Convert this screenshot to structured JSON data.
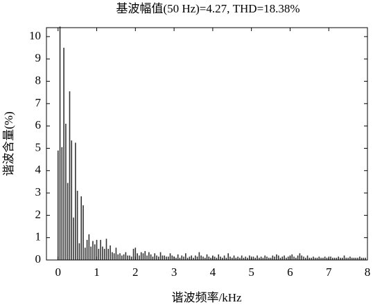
{
  "chart_data": {
    "type": "bar",
    "title": "基波幅值(50 Hz)=4.27, THD=18.38%",
    "x_label": "谐波频率/kHz",
    "y_label": "谐波含量(%)",
    "color": "#333333",
    "xlim": [
      -0.3,
      8
    ],
    "ylim": [
      0,
      10.4
    ],
    "xticks": [
      0,
      1,
      2,
      3,
      4,
      5,
      6,
      7,
      8
    ],
    "yticks": [
      0,
      1,
      2,
      3,
      4,
      5,
      6,
      7,
      8,
      9,
      10
    ],
    "x": [
      0,
      0.05,
      0.1,
      0.15,
      0.2,
      0.25,
      0.3,
      0.35,
      0.4,
      0.45,
      0.5,
      0.55,
      0.6,
      0.65,
      0.7,
      0.75,
      0.8,
      0.85,
      0.9,
      0.95,
      1,
      1.05,
      1.1,
      1.15,
      1.2,
      1.25,
      1.3,
      1.35,
      1.4,
      1.45,
      1.5,
      1.55,
      1.6,
      1.65,
      1.7,
      1.75,
      1.8,
      1.85,
      1.9,
      1.95,
      2,
      2.05,
      2.1,
      2.15,
      2.2,
      2.25,
      2.3,
      2.35,
      2.4,
      2.45,
      2.5,
      2.55,
      2.6,
      2.65,
      2.7,
      2.75,
      2.8,
      2.85,
      2.9,
      2.95,
      3,
      3.05,
      3.1,
      3.15,
      3.2,
      3.25,
      3.3,
      3.35,
      3.4,
      3.45,
      3.5,
      3.55,
      3.6,
      3.65,
      3.7,
      3.75,
      3.8,
      3.85,
      3.9,
      3.95,
      4,
      4.05,
      4.1,
      4.15,
      4.2,
      4.25,
      4.3,
      4.35,
      4.4,
      4.45,
      4.5,
      4.55,
      4.6,
      4.65,
      4.7,
      4.75,
      4.8,
      4.85,
      4.9,
      4.95,
      5,
      5.05,
      5.1,
      5.15,
      5.2,
      5.25,
      5.3,
      5.35,
      5.4,
      5.45,
      5.5,
      5.55,
      5.6,
      5.65,
      5.7,
      5.75,
      5.8,
      5.85,
      5.9,
      5.95,
      6,
      6.05,
      6.1,
      6.15,
      6.2,
      6.25,
      6.3,
      6.35,
      6.4,
      6.45,
      6.5,
      6.55,
      6.6,
      6.65,
      6.7,
      6.75,
      6.8,
      6.85,
      6.9,
      6.95,
      7,
      7.05,
      7.1,
      7.15,
      7.2,
      7.25,
      7.3,
      7.35,
      7.4,
      7.45,
      7.5,
      7.55,
      7.6,
      7.65,
      7.7,
      7.75,
      7.8,
      7.85,
      7.9,
      7.95
    ],
    "values": [
      4.9,
      10.45,
      5.05,
      9.5,
      6.1,
      3.45,
      7.55,
      5.35,
      1.9,
      5.25,
      3.1,
      0.75,
      2.85,
      2.45,
      0.55,
      0.9,
      1.15,
      0.6,
      0.85,
      0.7,
      0.9,
      0.5,
      0.9,
      0.6,
      0.5,
      0.95,
      0.5,
      0.65,
      0.35,
      0.3,
      0.55,
      0.25,
      0.3,
      0.2,
      0.25,
      0.35,
      0.2,
      0.2,
      0.15,
      0.5,
      0.55,
      0.3,
      0.2,
      0.35,
      0.3,
      0.4,
      0.2,
      0.35,
      0.25,
      0.15,
      0.3,
      0.2,
      0.15,
      0.35,
      0.2,
      0.2,
      0.15,
      0.15,
      0.3,
      0.2,
      0.15,
      0.1,
      0.25,
      0.1,
      0.2,
      0.15,
      0.3,
      0.1,
      0.15,
      0.2,
      0.1,
      0.2,
      0.15,
      0.35,
      0.2,
      0.15,
      0.1,
      0.25,
      0.15,
      0.1,
      0.2,
      0.15,
      0.1,
      0.25,
      0.15,
      0.1,
      0.2,
      0.1,
      0.3,
      0.15,
      0.1,
      0.2,
      0.1,
      0.15,
      0.1,
      0.2,
      0.1,
      0.15,
      0.1,
      0.2,
      0.1,
      0.15,
      0.1,
      0.2,
      0.1,
      0.15,
      0.1,
      0.2,
      0.15,
      0.1,
      0.1,
      0.2,
      0.15,
      0.25,
      0.2,
      0.1,
      0.15,
      0.2,
      0.1,
      0.15,
      0.2,
      0.25,
      0.15,
      0.1,
      0.2,
      0.3,
      0.2,
      0.15,
      0.1,
      0.2,
      0.1,
      0.1,
      0.15,
      0.1,
      0.1,
      0.15,
      0.1,
      0.1,
      0.15,
      0.1,
      0.1,
      0.15,
      0.1,
      0.1,
      0.1,
      0.15,
      0.1,
      0.1,
      0.2,
      0.1,
      0.1,
      0.15,
      0.1,
      0.1,
      0.1,
      0.1,
      0.15,
      0.1,
      0.1,
      0.1
    ]
  }
}
